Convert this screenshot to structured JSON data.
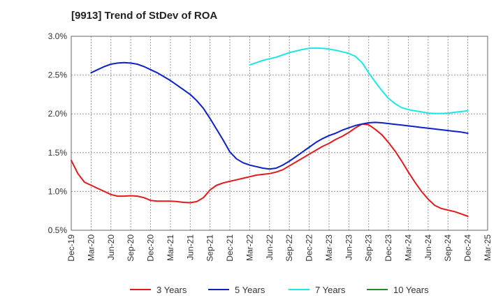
{
  "chart_data": {
    "type": "line",
    "title": "[9913]  Trend of StDev of ROA",
    "xlabel": "",
    "ylabel": "",
    "ylim": [
      0.5,
      3.0
    ],
    "grid": true,
    "legend_position": "bottom",
    "y_ticks": [
      "0.5%",
      "1.0%",
      "1.5%",
      "2.0%",
      "2.5%",
      "3.0%"
    ],
    "y_tick_values": [
      0.5,
      1.0,
      1.5,
      2.0,
      2.5,
      3.0
    ],
    "x_ticks": [
      "Dec-19",
      "Mar-20",
      "Jun-20",
      "Sep-20",
      "Dec-20",
      "Mar-21",
      "Jun-21",
      "Sep-21",
      "Dec-21",
      "Mar-22",
      "Jun-22",
      "Sep-22",
      "Dec-22",
      "Mar-23",
      "Jun-23",
      "Sep-23",
      "Dec-23",
      "Mar-24",
      "Jun-24",
      "Sep-24",
      "Dec-24",
      "Mar-25"
    ],
    "series": [
      {
        "name": "3 Years",
        "color": "#e31a1c",
        "x": [
          "Dec-19",
          "Jan-20",
          "Feb-20",
          "Mar-20",
          "Apr-20",
          "May-20",
          "Jun-20",
          "Jul-20",
          "Aug-20",
          "Sep-20",
          "Oct-20",
          "Nov-20",
          "Dec-20",
          "Jan-21",
          "Feb-21",
          "Mar-21",
          "Apr-21",
          "May-21",
          "Jun-21",
          "Jul-21",
          "Aug-21",
          "Sep-21",
          "Oct-21",
          "Nov-21",
          "Dec-21",
          "Jan-22",
          "Feb-22",
          "Mar-22",
          "Apr-22",
          "May-22",
          "Jun-22",
          "Jul-22",
          "Aug-22",
          "Sep-22",
          "Oct-22",
          "Nov-22",
          "Dec-22",
          "Jan-23",
          "Feb-23",
          "Mar-23",
          "Apr-23",
          "May-23",
          "Jun-23",
          "Jul-23",
          "Aug-23",
          "Sep-23",
          "Oct-23",
          "Nov-23",
          "Dec-23",
          "Jan-24",
          "Feb-24",
          "Mar-24",
          "Apr-24",
          "May-24",
          "Jun-24",
          "Jul-24",
          "Aug-24",
          "Sep-24",
          "Oct-24",
          "Nov-24",
          "Dec-24"
        ],
        "values": [
          1.4,
          1.23,
          1.12,
          1.08,
          1.04,
          1.0,
          0.96,
          0.94,
          0.94,
          0.945,
          0.94,
          0.92,
          0.885,
          0.875,
          0.875,
          0.875,
          0.87,
          0.86,
          0.855,
          0.87,
          0.92,
          1.02,
          1.08,
          1.11,
          1.13,
          1.15,
          1.17,
          1.19,
          1.21,
          1.22,
          1.23,
          1.25,
          1.28,
          1.33,
          1.38,
          1.43,
          1.48,
          1.53,
          1.58,
          1.62,
          1.67,
          1.71,
          1.76,
          1.82,
          1.87,
          1.86,
          1.8,
          1.73,
          1.63,
          1.52,
          1.39,
          1.25,
          1.12,
          1.0,
          0.9,
          0.82,
          0.78,
          0.76,
          0.74,
          0.71,
          0.68
        ]
      },
      {
        "name": "5 Years",
        "color": "#0a22c8",
        "x": [
          "Mar-20",
          "Apr-20",
          "May-20",
          "Jun-20",
          "Jul-20",
          "Aug-20",
          "Sep-20",
          "Oct-20",
          "Nov-20",
          "Dec-20",
          "Jan-21",
          "Feb-21",
          "Mar-21",
          "Apr-21",
          "May-21",
          "Jun-21",
          "Jul-21",
          "Aug-21",
          "Sep-21",
          "Oct-21",
          "Nov-21",
          "Dec-21",
          "Jan-22",
          "Feb-22",
          "Mar-22",
          "Apr-22",
          "May-22",
          "Jun-22",
          "Jul-22",
          "Aug-22",
          "Sep-22",
          "Oct-22",
          "Nov-22",
          "Dec-22",
          "Jan-23",
          "Feb-23",
          "Mar-23",
          "Apr-23",
          "May-23",
          "Jun-23",
          "Jul-23",
          "Aug-23",
          "Sep-23",
          "Oct-23",
          "Nov-23",
          "Dec-23",
          "Jan-24",
          "Feb-24",
          "Mar-24",
          "Apr-24",
          "May-24",
          "Jun-24",
          "Jul-24",
          "Aug-24",
          "Sep-24",
          "Oct-24",
          "Nov-24",
          "Dec-24"
        ],
        "values": [
          2.53,
          2.57,
          2.61,
          2.64,
          2.655,
          2.66,
          2.655,
          2.64,
          2.61,
          2.57,
          2.53,
          2.48,
          2.43,
          2.37,
          2.31,
          2.25,
          2.17,
          2.07,
          1.94,
          1.8,
          1.66,
          1.51,
          1.42,
          1.37,
          1.34,
          1.32,
          1.3,
          1.29,
          1.3,
          1.34,
          1.39,
          1.45,
          1.51,
          1.57,
          1.63,
          1.68,
          1.72,
          1.75,
          1.79,
          1.82,
          1.85,
          1.87,
          1.885,
          1.89,
          1.885,
          1.875,
          1.865,
          1.855,
          1.845,
          1.835,
          1.825,
          1.815,
          1.805,
          1.795,
          1.785,
          1.775,
          1.765,
          1.75
        ]
      },
      {
        "name": "7 Years",
        "color": "#1ee6e6",
        "x": [
          "Mar-22",
          "Apr-22",
          "May-22",
          "Jun-22",
          "Jul-22",
          "Aug-22",
          "Sep-22",
          "Oct-22",
          "Nov-22",
          "Dec-22",
          "Jan-23",
          "Feb-23",
          "Mar-23",
          "Apr-23",
          "May-23",
          "Jun-23",
          "Jul-23",
          "Aug-23",
          "Sep-23",
          "Oct-23",
          "Nov-23",
          "Dec-23",
          "Jan-24",
          "Feb-24",
          "Mar-24",
          "Apr-24",
          "May-24",
          "Jun-24",
          "Jul-24",
          "Aug-24",
          "Sep-24",
          "Oct-24",
          "Nov-24",
          "Dec-24"
        ],
        "values": [
          2.63,
          2.66,
          2.69,
          2.71,
          2.73,
          2.76,
          2.79,
          2.81,
          2.83,
          2.845,
          2.85,
          2.845,
          2.835,
          2.82,
          2.8,
          2.78,
          2.74,
          2.66,
          2.53,
          2.41,
          2.3,
          2.2,
          2.13,
          2.08,
          2.055,
          2.04,
          2.025,
          2.01,
          2.005,
          2.005,
          2.01,
          2.02,
          2.03,
          2.04
        ]
      },
      {
        "name": "10 Years",
        "color": "#228b22",
        "x": [],
        "values": []
      }
    ]
  }
}
